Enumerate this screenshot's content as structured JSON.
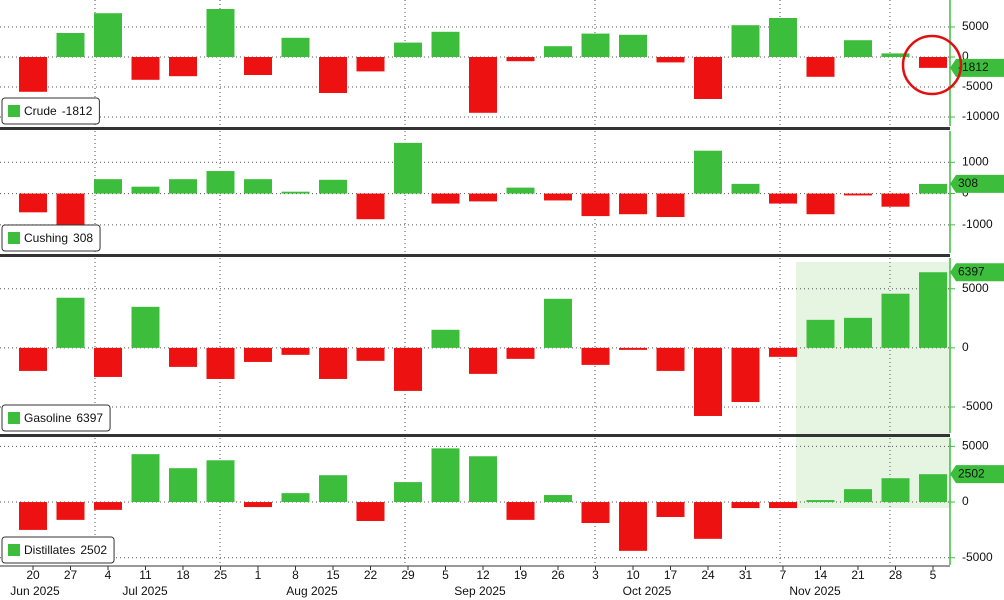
{
  "chart_data": [
    {
      "type": "bar",
      "series": [
        {
          "name": "Crude",
          "color": "#3cbe3c",
          "negative_color": "#ee1111",
          "values": [
            -5800,
            4000,
            7300,
            -3800,
            -3200,
            8000,
            -3000,
            3200,
            -6000,
            -2400,
            2400,
            4200,
            -9300,
            -700,
            1800,
            3900,
            3700,
            -900,
            -7000,
            5300,
            6500,
            -3300,
            2800,
            600,
            -1812
          ]
        }
      ],
      "ylim": [
        -11500,
        9500
      ],
      "yticks": [
        5000,
        0,
        -5000,
        -10000
      ],
      "grid": true
    },
    {
      "type": "bar",
      "series": [
        {
          "name": "Cushing",
          "color": "#3cbe3c",
          "negative_color": "#ee1111",
          "values": [
            -600,
            -1400,
            460,
            220,
            460,
            720,
            460,
            60,
            440,
            -820,
            1620,
            -320,
            -250,
            190,
            -220,
            -720,
            -660,
            -750,
            1370,
            310,
            -320,
            -660,
            -60,
            -420,
            308
          ]
        }
      ],
      "ylim": [
        -1900,
        2000
      ],
      "yticks": [
        1000,
        0,
        -1000
      ],
      "grid": true
    },
    {
      "type": "bar",
      "series": [
        {
          "name": "Gasoline",
          "color": "#3cbe3c",
          "negative_color": "#ee1111",
          "values": [
            -1950,
            4240,
            -2460,
            3470,
            -1610,
            -2630,
            -1190,
            -590,
            -2630,
            -1100,
            -3640,
            1530,
            -2200,
            -930,
            4150,
            -1440,
            -170,
            -1950,
            -5760,
            -4580,
            -760,
            2370,
            2540,
            4580,
            6397
          ]
        }
      ],
      "ylim": [
        -7200,
        7600
      ],
      "yticks": [
        5000,
        0,
        -5000
      ],
      "grid": true
    },
    {
      "type": "bar",
      "series": [
        {
          "name": "Distillates",
          "color": "#3cbe3c",
          "negative_color": "#ee1111",
          "values": [
            -2500,
            -1600,
            -700,
            4300,
            3040,
            3750,
            -450,
            800,
            2410,
            -1700,
            1790,
            4820,
            4110,
            -1600,
            630,
            -1880,
            -4380,
            -1340,
            -3300,
            -540,
            -540,
            180,
            1160,
            2140,
            2502
          ]
        }
      ],
      "ylim": [
        -5650,
        5750
      ],
      "yticks": [
        5000,
        0,
        -5000
      ],
      "grid": true,
      "categories": [
        "20",
        "27",
        "4",
        "11",
        "18",
        "25",
        "1",
        "8",
        "15",
        "22",
        "29",
        "5",
        "12",
        "19",
        "26",
        "3",
        "10",
        "17",
        "24",
        "31",
        "7",
        "14",
        "21",
        "28",
        "5"
      ],
      "months": [
        "Jun 2025",
        "Jul 2025",
        "Aug 2025",
        "Sep 2025",
        "Oct 2025",
        "Nov 2025"
      ]
    }
  ]
}
